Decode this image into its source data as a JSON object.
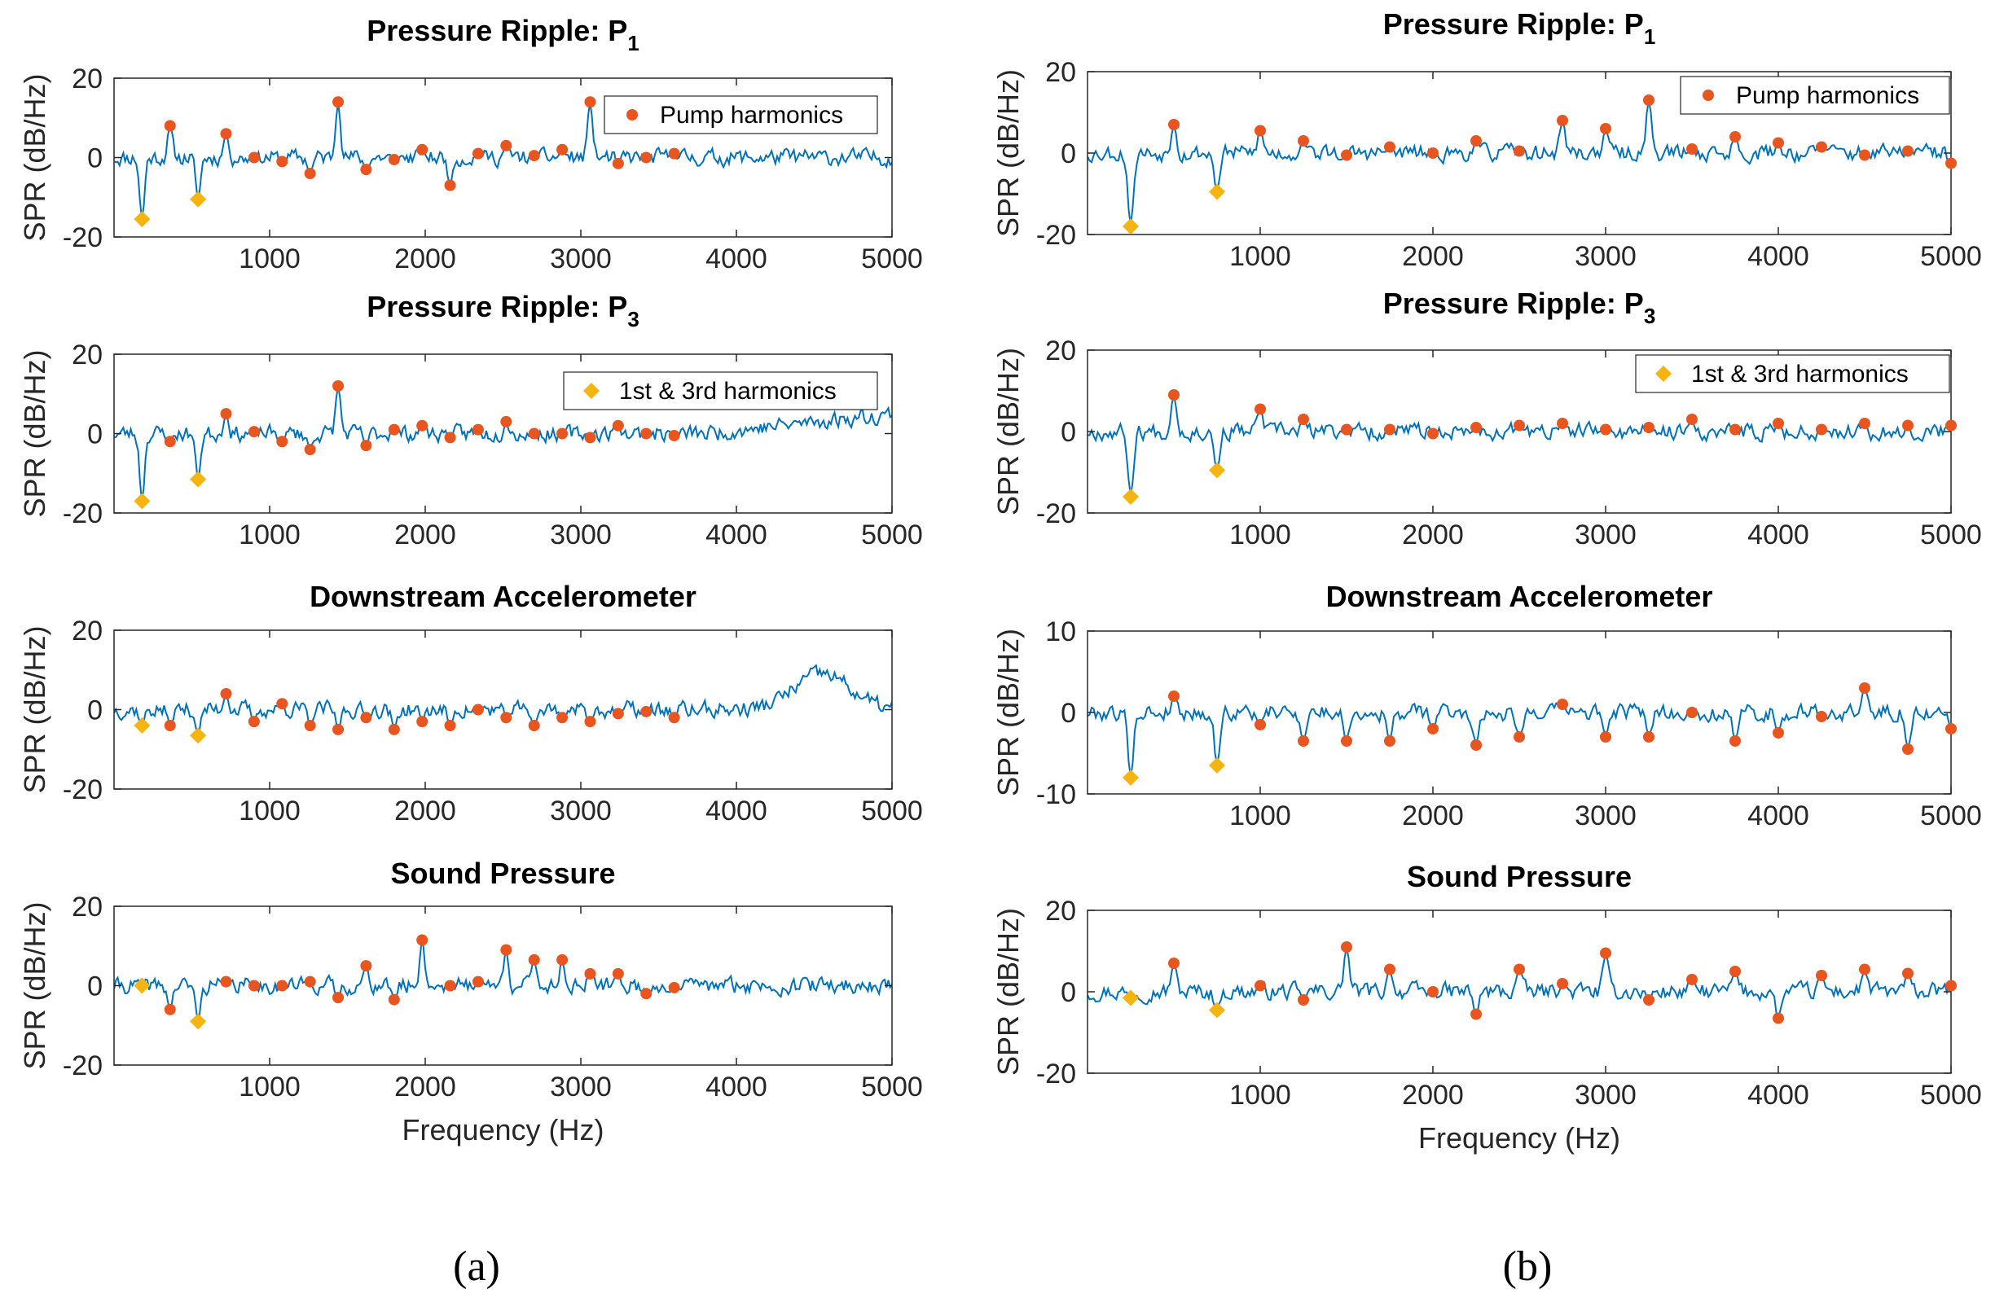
{
  "colors": {
    "signal": "#0072BD",
    "pump": "#E8551E",
    "harmonic": "#F5B40F",
    "axis": "#262626"
  },
  "legend_labels": {
    "pump": "Pump harmonics",
    "harmonic": "1st & 3rd harmonics"
  },
  "xlabel": "Frequency (Hz)",
  "ylabel": "SPR (dB/Hz)",
  "panel_labels": [
    "(a)",
    "(b)"
  ],
  "chart_data": [
    {
      "type": "line",
      "panel": "(a)",
      "title": "Pressure Ripple: P",
      "title_sub": "1",
      "xlim": [
        0,
        5000
      ],
      "ylim": [
        -20,
        20
      ],
      "xticks": [
        1000,
        2000,
        3000,
        4000,
        5000
      ],
      "yticks": [
        -20,
        0,
        20
      ],
      "legend": "pump",
      "seed": 11,
      "pump_harmonics": {
        "x": [
          360,
          720,
          900,
          1080,
          1260,
          1440,
          1620,
          1800,
          1980,
          2160,
          2340,
          2520,
          2700,
          2880,
          3060,
          3240,
          3420,
          3600
        ],
        "y": [
          8,
          6,
          0,
          -1,
          -4,
          14,
          -3,
          -0.5,
          2,
          -7,
          1,
          3,
          0.5,
          2,
          14,
          -1.5,
          0,
          1
        ]
      },
      "harmonics_1st_3rd": {
        "x": [
          180,
          540
        ],
        "y": [
          -15.5,
          -10.5
        ]
      }
    },
    {
      "type": "line",
      "panel": "(a)",
      "title": "Pressure Ripple: P",
      "title_sub": "3",
      "xlim": [
        0,
        5000
      ],
      "ylim": [
        -20,
        20
      ],
      "xticks": [
        1000,
        2000,
        3000,
        4000,
        5000
      ],
      "yticks": [
        -20,
        0,
        20
      ],
      "legend": "harmonic",
      "seed": 23,
      "pump_harmonics": {
        "x": [
          360,
          720,
          900,
          1080,
          1260,
          1440,
          1620,
          1800,
          1980,
          2160,
          2340,
          2520,
          2700,
          2880,
          3060,
          3240,
          3420,
          3600
        ],
        "y": [
          -2,
          5,
          0.5,
          -2,
          -4,
          12,
          -3,
          1,
          2,
          -1,
          1,
          3,
          0,
          0,
          -1,
          2,
          0,
          -0.5
        ]
      },
      "harmonics_1st_3rd": {
        "x": [
          180,
          540
        ],
        "y": [
          -17,
          -11.5
        ]
      }
    },
    {
      "type": "line",
      "panel": "(a)",
      "title": "Downstream Accelerometer",
      "title_sub": "",
      "xlim": [
        0,
        5000
      ],
      "ylim": [
        -20,
        20
      ],
      "xticks": [
        1000,
        2000,
        3000,
        4000,
        5000
      ],
      "yticks": [
        -20,
        0,
        20
      ],
      "legend": "",
      "seed": 37,
      "pump_harmonics": {
        "x": [
          360,
          720,
          900,
          1080,
          1260,
          1440,
          1620,
          1800,
          1980,
          2160,
          2340,
          2520,
          2700,
          2880,
          3060,
          3240,
          3420,
          3600
        ],
        "y": [
          -4,
          4,
          -3,
          1.5,
          -4,
          -5,
          -2,
          -5,
          -3,
          -4,
          0,
          -2,
          -4,
          -2,
          -3,
          -1,
          -0.5,
          -2
        ]
      },
      "harmonics_1st_3rd": {
        "x": [
          180,
          540
        ],
        "y": [
          -4,
          -6.5
        ]
      }
    },
    {
      "type": "line",
      "panel": "(a)",
      "title": "Sound Pressure",
      "title_sub": "",
      "xlim": [
        0,
        5000
      ],
      "ylim": [
        -20,
        20
      ],
      "xticks": [
        1000,
        2000,
        3000,
        4000,
        5000
      ],
      "yticks": [
        -20,
        0,
        20
      ],
      "legend": "",
      "seed": 41,
      "pump_harmonics": {
        "x": [
          360,
          720,
          900,
          1080,
          1260,
          1440,
          1620,
          1800,
          1980,
          2160,
          2340,
          2520,
          2700,
          2880,
          3060,
          3240,
          3420,
          3600
        ],
        "y": [
          -6,
          1,
          0,
          0,
          1,
          -3,
          5,
          -3.5,
          11.5,
          0,
          1,
          9,
          6.5,
          6.5,
          3,
          3,
          -2,
          -0.5
        ]
      },
      "harmonics_1st_3rd": {
        "x": [
          180,
          540
        ],
        "y": [
          0,
          -9
        ]
      }
    },
    {
      "type": "line",
      "panel": "(b)",
      "title": "Pressure Ripple: P",
      "title_sub": "1",
      "xlim": [
        0,
        5000
      ],
      "ylim": [
        -20,
        20
      ],
      "xticks": [
        1000,
        2000,
        3000,
        4000,
        5000
      ],
      "yticks": [
        -20,
        0,
        20
      ],
      "legend": "pump",
      "seed": 53,
      "pump_harmonics": {
        "x": [
          500,
          1000,
          1250,
          1500,
          1750,
          2000,
          2250,
          2500,
          2750,
          3000,
          3250,
          3500,
          3750,
          4000,
          4250,
          4500,
          4750,
          5000
        ],
        "y": [
          7,
          5.5,
          3,
          -0.5,
          1.5,
          0,
          3,
          0.5,
          8,
          6,
          13,
          1,
          4,
          2.5,
          1.5,
          -0.5,
          0.5,
          -2.5
        ]
      },
      "harmonics_1st_3rd": {
        "x": [
          250,
          750
        ],
        "y": [
          -18,
          -9.5
        ]
      }
    },
    {
      "type": "line",
      "panel": "(b)",
      "title": "Pressure Ripple: P",
      "title_sub": "3",
      "xlim": [
        0,
        5000
      ],
      "ylim": [
        -20,
        20
      ],
      "xticks": [
        1000,
        2000,
        3000,
        4000,
        5000
      ],
      "yticks": [
        -20,
        0,
        20
      ],
      "legend": "harmonic",
      "seed": 67,
      "pump_harmonics": {
        "x": [
          500,
          1000,
          1250,
          1500,
          1750,
          2000,
          2250,
          2500,
          2750,
          3000,
          3250,
          3500,
          3750,
          4000,
          4250,
          4500,
          4750,
          5000
        ],
        "y": [
          9,
          5.5,
          3,
          0.5,
          0.5,
          -0.5,
          1,
          1.5,
          2,
          0.5,
          1,
          3,
          0.5,
          2,
          0.5,
          2,
          1.5,
          1.5
        ]
      },
      "harmonics_1st_3rd": {
        "x": [
          250,
          750
        ],
        "y": [
          -16,
          -9.5
        ]
      }
    },
    {
      "type": "line",
      "panel": "(b)",
      "title": "Downstream Accelerometer",
      "title_sub": "",
      "xlim": [
        0,
        5000
      ],
      "ylim": [
        -10,
        10
      ],
      "xticks": [
        1000,
        2000,
        3000,
        4000,
        5000
      ],
      "yticks": [
        -10,
        0,
        10
      ],
      "legend": "",
      "seed": 79,
      "pump_harmonics": {
        "x": [
          500,
          1000,
          1250,
          1500,
          1750,
          2000,
          2250,
          2500,
          2750,
          3000,
          3250,
          3500,
          3750,
          4000,
          4250,
          4500,
          4750,
          5000
        ],
        "y": [
          2,
          -1.5,
          -3.5,
          -3.5,
          -3.5,
          -2,
          -4,
          -3,
          1,
          -3,
          -3,
          0,
          -3.5,
          -2.5,
          -0.5,
          3,
          -4.5,
          -2
        ]
      },
      "harmonics_1st_3rd": {
        "x": [
          250,
          750
        ],
        "y": [
          -8,
          -6.5
        ]
      }
    },
    {
      "type": "line",
      "panel": "(b)",
      "title": "Sound Pressure",
      "title_sub": "",
      "xlim": [
        0,
        5000
      ],
      "ylim": [
        -20,
        20
      ],
      "xticks": [
        1000,
        2000,
        3000,
        4000,
        5000
      ],
      "yticks": [
        -20,
        0,
        20
      ],
      "legend": "",
      "seed": 97,
      "pump_harmonics": {
        "x": [
          500,
          1000,
          1250,
          1500,
          1750,
          2000,
          2250,
          2500,
          2750,
          3000,
          3250,
          3500,
          3750,
          4000,
          4250,
          4500,
          4750,
          5000
        ],
        "y": [
          7,
          1.5,
          -2,
          11,
          5.5,
          0,
          -5.5,
          5.5,
          2,
          9.5,
          -2,
          3,
          5,
          -6.5,
          4,
          5.5,
          4.5,
          1.5
        ]
      },
      "harmonics_1st_3rd": {
        "x": [
          250,
          750
        ],
        "y": [
          -1.5,
          -4.5
        ]
      }
    }
  ]
}
